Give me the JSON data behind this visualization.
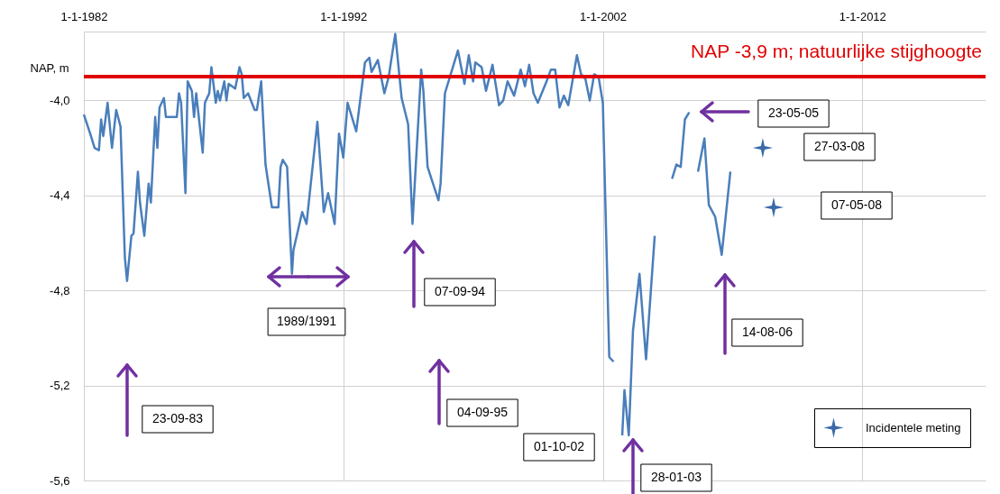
{
  "chart_data": {
    "type": "line",
    "ylabel": "NAP, m",
    "xlim": [
      "1982-01-01",
      "2016-10-01"
    ],
    "xticks": [
      {
        "value": "1982-01-01",
        "label": "1-1-1982"
      },
      {
        "value": "1992-01-01",
        "label": "1-1-1992"
      },
      {
        "value": "2002-01-01",
        "label": "1-1-2002"
      },
      {
        "value": "2012-01-01",
        "label": "1-1-2012"
      }
    ],
    "ylim": [
      -5.6,
      -3.71
    ],
    "yticks": [
      {
        "value": -4.0,
        "label": "-4,0"
      },
      {
        "value": -4.4,
        "label": "-4,4"
      },
      {
        "value": -4.8,
        "label": "-4,8"
      },
      {
        "value": -5.2,
        "label": "-5,2"
      },
      {
        "value": -5.6,
        "label": "-5,6"
      }
    ],
    "grid": true,
    "legend": "bottom right",
    "ref_lines": [
      {
        "axis": "y",
        "value": -3.9,
        "label": "NAP -3,9 m;  natuurlijke stijghoogte",
        "color": "#e00000"
      }
    ],
    "annotations": [
      "23-09-83",
      "1989/1991",
      "07-09-94",
      "04-09-95",
      "01-10-02",
      "28-01-03",
      "23-05-05",
      "14-08-06",
      "27-03-08",
      "07-05-08"
    ],
    "series": [
      {
        "color": "#4a7ebb",
        "marker": "none",
        "x": [
          "1982-01",
          "1982-04",
          "1982-06",
          "1982-08",
          "1982-09",
          "1982-10",
          "1982-12",
          "1983-02",
          "1983-04",
          "1983-06",
          "1983-08",
          "1983-09",
          "1983-11",
          "1983-12",
          "1984-02",
          "1984-03",
          "1984-05",
          "1984-07",
          "1984-08",
          "1984-10",
          "1984-11",
          "1984-12",
          "1985-02",
          "1985-03",
          "1985-08",
          "1985-09",
          "1985-10",
          "1985-12",
          "1986-01",
          "1986-03",
          "1986-04",
          "1986-05",
          "1986-08",
          "1986-09",
          "1986-11",
          "1986-12",
          "1987-02",
          "1987-03",
          "1987-04",
          "1987-06",
          "1987-07",
          "1987-08",
          "1987-11",
          "1988-01",
          "1988-02",
          "1988-03",
          "1988-05",
          "1988-08",
          "1988-09",
          "1988-11",
          "1989-01",
          "1989-04",
          "1989-07",
          "1989-08",
          "1989-09",
          "1989-11",
          "1990-01-08",
          "1990-01-29",
          "1990-06",
          "1990-08",
          "1991-01",
          "1991-04",
          "1991-06",
          "1991-09",
          "1991-11",
          "1992-01",
          "1992-03",
          "1992-07",
          "1992-11",
          "1993-01",
          "1993-02",
          "1993-05",
          "1993-08",
          "1993-10",
          "1994-01",
          "1994-04",
          "1994-07",
          "1994-09",
          "1995-01",
          "1995-02",
          "1995-04",
          "1995-09",
          "1995-10",
          "1995-12",
          "1996-03",
          "1996-06",
          "1996-09",
          "1996-11",
          "1997-01",
          "1997-02",
          "1997-05",
          "1997-07",
          "1997-10",
          "1998-01",
          "1998-03",
          "1998-05",
          "1998-08",
          "1998-11",
          "1999-01",
          "1999-03",
          "1999-05",
          "1999-07",
          "1999-11",
          "2000-01",
          "2000-03",
          "2000-05",
          "2000-07",
          "2000-09",
          "2001-01",
          "2001-03",
          "2001-05",
          "2001-07",
          "2001-09",
          "2001-11",
          "2002-01",
          "2002-04",
          "2002-06",
          "2002-08",
          "2002-10",
          "2002-11",
          "2003-01",
          "2003-03",
          "2003-06",
          "2003-09",
          "2003-11",
          "2004-01",
          "2004-05",
          "2004-09",
          "2004-11",
          "2005-01",
          "2005-03",
          "2005-05",
          "2005-07",
          "2005-09",
          "2005-12",
          "2006-02",
          "2006-05",
          "2006-08",
          "2006-12"
        ],
        "values": [
          -4.06,
          -4.14,
          -4.2,
          -4.21,
          -4.08,
          -4.15,
          -4.01,
          -4.2,
          -4.04,
          -4.11,
          -4.66,
          -4.76,
          -4.57,
          -4.56,
          -4.3,
          -4.43,
          -4.57,
          -4.35,
          -4.43,
          -4.07,
          -4.2,
          -4.03,
          -3.99,
          -4.07,
          -4.07,
          -3.97,
          -4.01,
          -4.39,
          -3.92,
          -3.96,
          -4.07,
          -3.97,
          -4.22,
          -4.01,
          -3.97,
          -3.86,
          -4.01,
          -3.96,
          -4.0,
          -3.92,
          -4.0,
          -3.93,
          -3.95,
          -3.86,
          -3.89,
          -3.99,
          -3.97,
          -4.04,
          -4.04,
          -3.92,
          -4.27,
          -4.45,
          -4.45,
          -4.28,
          -4.25,
          -4.28,
          -4.73,
          -4.63,
          -4.47,
          -4.52,
          -4.09,
          -4.47,
          -4.39,
          -4.52,
          -4.14,
          -4.24,
          -4.01,
          -4.13,
          -3.84,
          -3.82,
          -3.88,
          -3.83,
          -3.97,
          -3.9,
          -3.72,
          -3.99,
          -4.1,
          -4.52,
          -3.87,
          -3.96,
          -4.28,
          -4.42,
          -4.35,
          -3.97,
          -3.88,
          -3.79,
          -3.93,
          -3.81,
          -3.92,
          -3.84,
          -3.86,
          -3.96,
          -3.85,
          -4.02,
          -4.0,
          -3.92,
          -3.98,
          -3.87,
          -3.94,
          -3.85,
          -3.97,
          -4.01,
          -3.92,
          -3.87,
          -3.87,
          -4.03,
          -3.98,
          -4.02,
          -3.81,
          -3.89,
          -3.91,
          -4.0,
          -3.89,
          -3.9,
          -4.01,
          -5.08,
          -5.1,
          null,
          -5.41,
          -5.22,
          -5.41,
          -4.97,
          -4.73,
          -5.09,
          -4.83,
          -4.57,
          null,
          -4.33,
          -4.27,
          -4.28,
          -4.08,
          -4.05,
          null,
          -4.3,
          -4.16,
          -4.44,
          -4.49,
          -4.65,
          -4.3
        ]
      },
      {
        "type": "scatter",
        "name": "Incidentele meting",
        "color": "#3a6aa8",
        "marker": "star",
        "x": [
          "2008-03",
          "2008-08"
        ],
        "values": [
          -4.2,
          -4.45
        ]
      }
    ]
  }
}
